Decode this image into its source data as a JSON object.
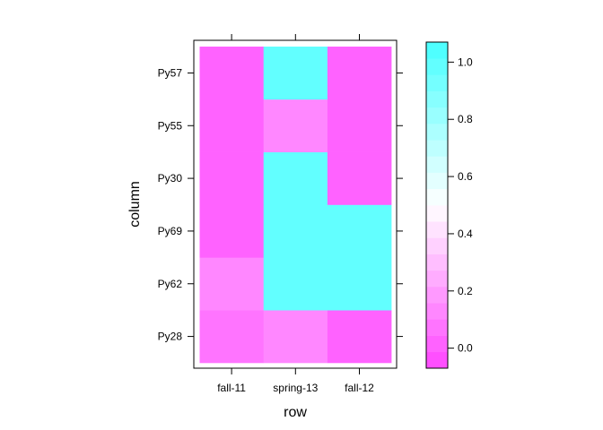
{
  "chart_data": {
    "type": "heatmap",
    "title": "",
    "xlabel": "row",
    "ylabel": "column",
    "x_categories": [
      "fall-11",
      "spring-13",
      "fall-12"
    ],
    "y_categories": [
      "Py28",
      "Py62",
      "Py69",
      "Py30",
      "Py55",
      "Py57"
    ],
    "values": [
      [
        0.05,
        0.15,
        0.0
      ],
      [
        0.15,
        1.0,
        1.0
      ],
      [
        0.0,
        1.0,
        1.0
      ],
      [
        0.0,
        1.0,
        0.0
      ],
      [
        0.0,
        0.15,
        0.0
      ],
      [
        0.0,
        1.0,
        0.0
      ]
    ],
    "colorbar": {
      "range": [
        -0.07,
        1.07
      ],
      "ticks": [
        0.0,
        0.2,
        0.4,
        0.6,
        0.8,
        1.0
      ],
      "tick_labels": [
        "0.0",
        "0.2",
        "0.4",
        "0.6",
        "0.8",
        "1.0"
      ],
      "low_color": "#ff46ff",
      "mid_color": "#ffffff",
      "high_color": "#46ffff",
      "bands": 20
    },
    "grid": false,
    "legend": "right"
  }
}
